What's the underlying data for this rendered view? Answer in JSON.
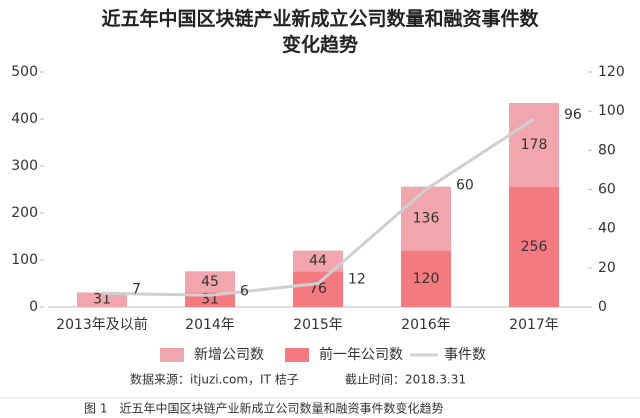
{
  "chart_data": {
    "type": "bar",
    "title": "近五年中国区块链产业新成立公司数量和融资事件数变化趋势",
    "categories": [
      "2013年及以前",
      "2014年",
      "2015年",
      "2016年",
      "2017年"
    ],
    "stacked": true,
    "series": [
      {
        "name": "前一年公司数",
        "color": "#f47a80",
        "values": [
          null,
          31,
          76,
          120,
          256
        ]
      },
      {
        "name": "新增公司数",
        "color": "#f0a6ac",
        "values": [
          31,
          45,
          44,
          136,
          178
        ]
      },
      {
        "name": "事件数",
        "color": "#cfcfd3",
        "type": "line",
        "axis": "y2",
        "values": [
          7,
          6,
          12,
          60,
          96
        ]
      }
    ],
    "ylim": [
      0,
      500
    ],
    "yticks": [
      0,
      100,
      200,
      300,
      400,
      500
    ],
    "y2lim": [
      0,
      120
    ],
    "y2ticks": [
      0,
      20,
      40,
      60,
      80,
      100,
      120
    ],
    "grid": false,
    "legend": "bottom",
    "source": "数据来源：itjuzi.com，IT 桔子",
    "cutoff": "截止时间：2018.3.31",
    "caption": "图 1　近五年中国区块链产业新成立公司数量和融资事件数变化趋势"
  }
}
